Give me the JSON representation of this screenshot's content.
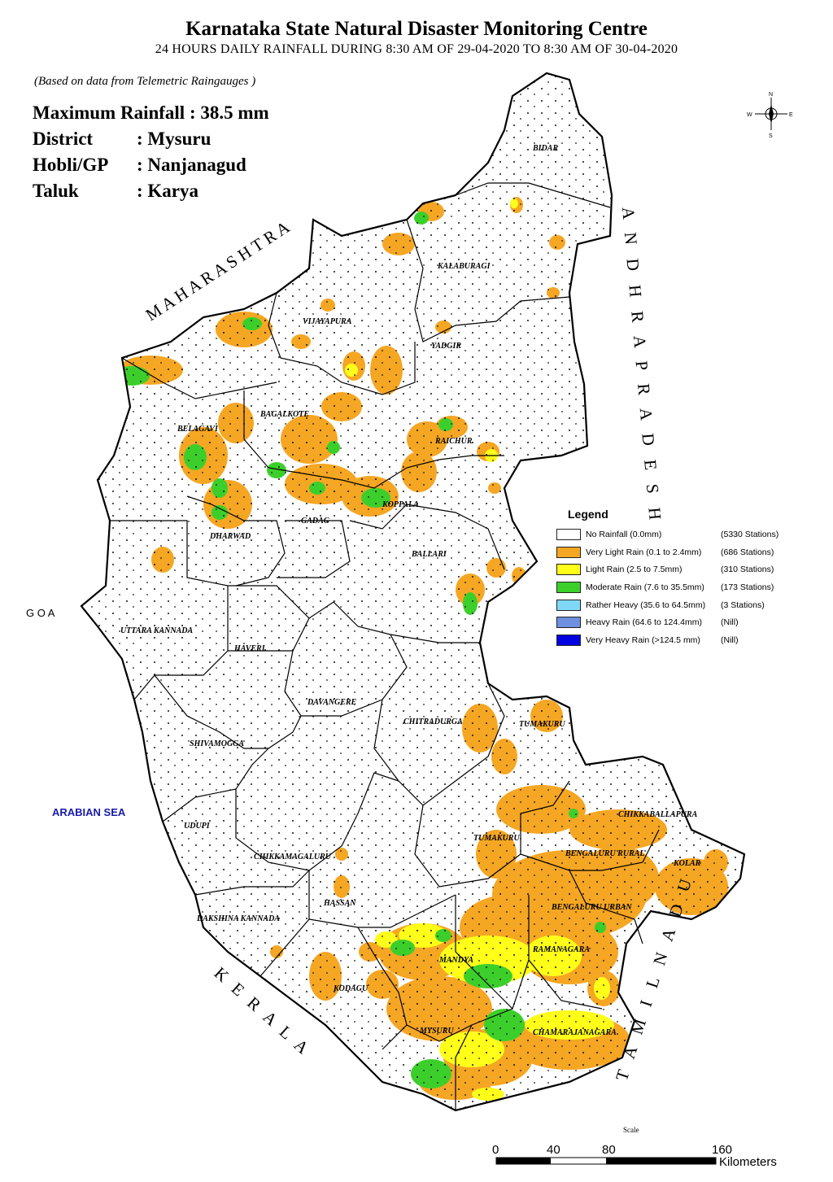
{
  "title": "Karnataka State Natural Disaster Monitoring Centre",
  "subtitle": "24 HOURS DAILY RAINFALL DURING 8:30 AM OF  29-04-2020 TO 8:30 AM OF 30-04-2020",
  "basis": "(Based on data from Telemetric Raingauges )",
  "summary": {
    "max_label": "Maximum Rainfall : 38.5 mm",
    "district_key": "District",
    "district_val": ": Mysuru",
    "hobli_key": "Hobli/GP",
    "hobli_val": ": Nanjanagud",
    "taluk_key": "Taluk",
    "taluk_val": ": Karya"
  },
  "neighbors": {
    "maharashtra": "M A H A R A S H T R A",
    "andhra": "A N D H R A   P R A D E S H",
    "tamilnadu": "T A M I L N A D U",
    "kerala": "K E R A L A",
    "goa": "G O A",
    "arabian_sea": "ARABIAN SEA"
  },
  "districts": [
    "BIDAR",
    "KALABURAGI",
    "VIJAYAPURA",
    "YADGIR",
    "BELAGAVI",
    "BAGALKOTE",
    "RAICHUR",
    "KOPPALA",
    "GADAG",
    "DHARWAD",
    "BALLARI",
    "UTTARA KANNADA",
    "HAVERI",
    "DAVANGERE",
    "CHITRADURGA",
    "TUMAKURU",
    "SHIVAMOGGA",
    "UDUPI",
    "CHIKKAMAGALURU",
    "HASSAN",
    "TUMAKURU",
    "CHIKKABALLAPURA",
    "BENGALURU RURAL",
    "KOLAR",
    "BENGALURU URBAN",
    "DAKSHINA KANNADA",
    "MANDYA",
    "RAMANAGARA",
    "KODAGU",
    "MYSURU",
    "CHAMARAJANAGARA"
  ],
  "legend": {
    "title": "Legend",
    "items": [
      {
        "label": "No Rainfall (0.0mm)",
        "count": "(5330 Stations)",
        "color": "#ffffff"
      },
      {
        "label": "Very Light Rain (0.1 to 2.4mm)",
        "count": "(686 Stations)",
        "color": "#f5a623"
      },
      {
        "label": " Light Rain (2.5 to 7.5mm)",
        "count": "(310 Stations)",
        "color": "#ffff1a"
      },
      {
        "label": "Moderate Rain (7.6 to 35.5mm)",
        "count": "(173 Stations)",
        "color": "#3ccf2b"
      },
      {
        "label": "Rather Heavy  (35.6 to 64.5mm)",
        "count": "(3 Stations)",
        "color": "#7fd8f5"
      },
      {
        "label": "Heavy Rain  (64.6 to 124.4mm)",
        "count": "(Nill)",
        "color": "#6f8fe0"
      },
      {
        "label": "Very Heavy Rain  (>124.5 mm)",
        "count": "(Nill)",
        "color": "#0000e0"
      }
    ]
  },
  "scale": {
    "title": "Scale",
    "ticks": [
      "0",
      "40",
      "80",
      "160"
    ],
    "unit": "Kilometers"
  },
  "compass": {
    "n": "N",
    "s": "S",
    "e": "E",
    "w": "W"
  }
}
